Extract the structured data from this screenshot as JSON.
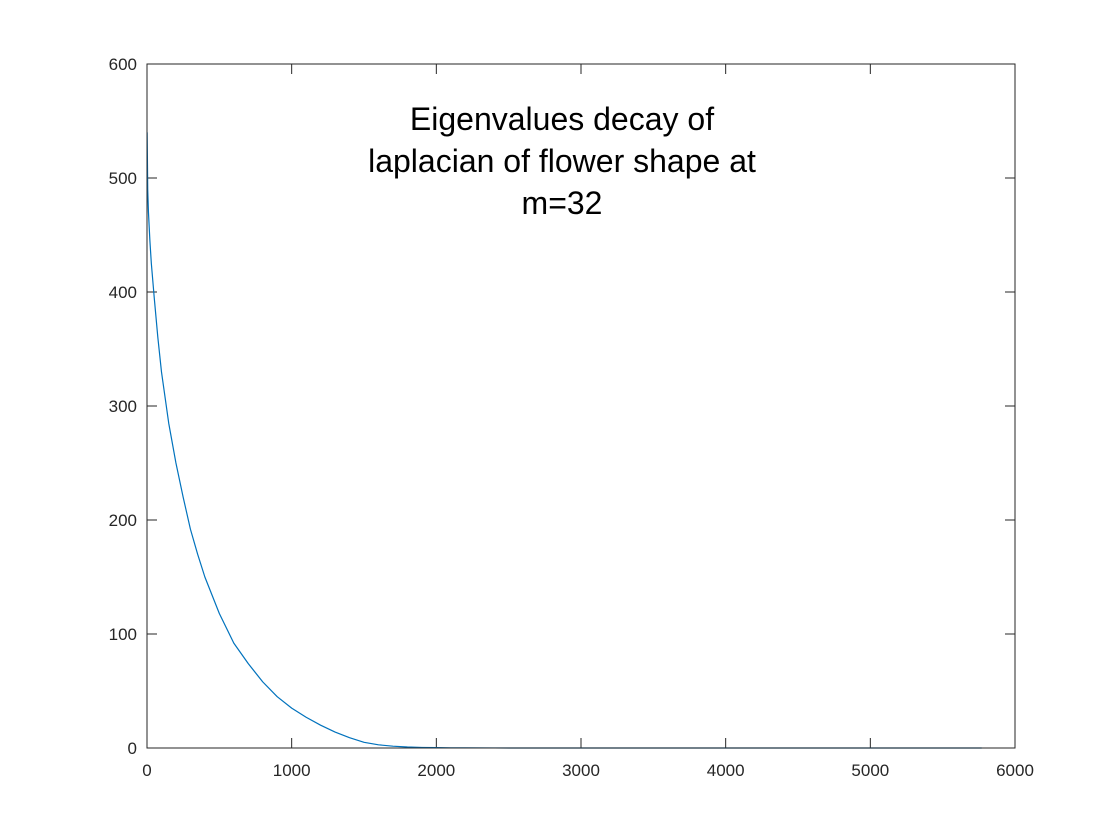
{
  "chart_data": {
    "type": "line",
    "title": "",
    "xlabel": "",
    "ylabel": "",
    "xlim": [
      0,
      6000
    ],
    "ylim": [
      0,
      600
    ],
    "x_ticks": [
      "0",
      "1000",
      "2000",
      "3000",
      "4000",
      "5000",
      "6000"
    ],
    "y_ticks": [
      "0",
      "100",
      "200",
      "300",
      "400",
      "500",
      "600"
    ],
    "grid": false,
    "box": true,
    "annotation": {
      "lines": [
        "Eigenvalues decay of",
        "laplacian of flower shape at",
        "m=32"
      ]
    },
    "series": [
      {
        "color": "#0072BD",
        "x": [
          1,
          5,
          10,
          20,
          30,
          50,
          75,
          100,
          150,
          200,
          250,
          300,
          350,
          400,
          500,
          600,
          700,
          800,
          900,
          1000,
          1100,
          1200,
          1300,
          1400,
          1500,
          1600,
          1700,
          1800,
          1900,
          2000,
          2100,
          2200,
          2400,
          2600,
          3000,
          3500,
          4000,
          4500,
          5000,
          5500,
          5770
        ],
        "y": [
          540,
          490,
          470,
          445,
          425,
          395,
          360,
          330,
          285,
          250,
          220,
          192,
          170,
          150,
          118,
          92,
          74,
          58,
          45,
          35,
          27,
          20,
          14,
          9,
          5,
          2.8,
          1.6,
          0.9,
          0.5,
          0.3,
          0.15,
          0.08,
          0.04,
          0.02,
          0.01,
          0.005,
          0.002,
          0.001,
          0.0005,
          0.0002,
          0.0001
        ]
      }
    ]
  }
}
